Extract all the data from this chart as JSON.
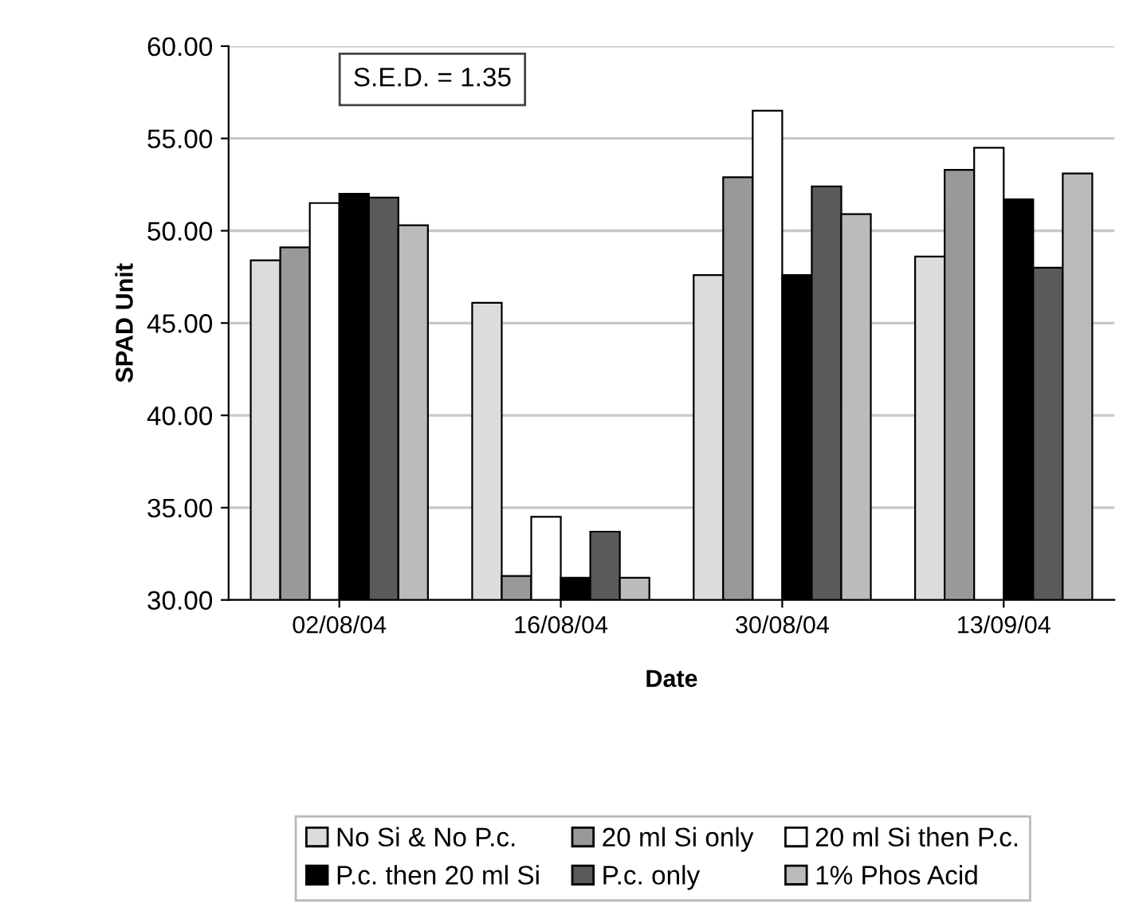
{
  "chart_data": {
    "type": "bar",
    "xlabel": "Date",
    "ylabel": "SPAD Unit",
    "categories": [
      "02/08/04",
      "16/08/04",
      "30/08/04",
      "13/09/04"
    ],
    "series": [
      {
        "name": "No Si & No P.c.",
        "color": "#dcdcdc",
        "values": [
          48.4,
          46.1,
          47.6,
          48.6
        ]
      },
      {
        "name": "20 ml Si only",
        "color": "#999999",
        "values": [
          49.1,
          31.3,
          52.9,
          53.3
        ]
      },
      {
        "name": "20 ml Si then P.c.",
        "color": "#ffffff",
        "values": [
          51.5,
          34.5,
          56.5,
          54.5
        ]
      },
      {
        "name": "P.c. then 20 ml Si",
        "color": "#000000",
        "values": [
          52.0,
          31.2,
          47.6,
          51.7
        ]
      },
      {
        "name": "P.c. only",
        "color": "#5a5a5a",
        "values": [
          51.8,
          33.7,
          52.4,
          48.0
        ]
      },
      {
        "name": "1% Phos Acid",
        "color": "#bbbbbb",
        "values": [
          50.3,
          31.2,
          50.9,
          53.1
        ]
      }
    ],
    "ylim": [
      30,
      60
    ],
    "yticks": [
      {
        "value": 30,
        "label": "30.00"
      },
      {
        "value": 35,
        "label": "35.00"
      },
      {
        "value": 40,
        "label": "40.00"
      },
      {
        "value": 45,
        "label": "45.00"
      },
      {
        "value": 50,
        "label": "50.00"
      },
      {
        "value": 55,
        "label": "55.00"
      },
      {
        "value": 60,
        "label": "60.00"
      }
    ],
    "annotations": [
      "S.E.D. = 1.35"
    ],
    "grid": "y",
    "legend": "bottom"
  }
}
